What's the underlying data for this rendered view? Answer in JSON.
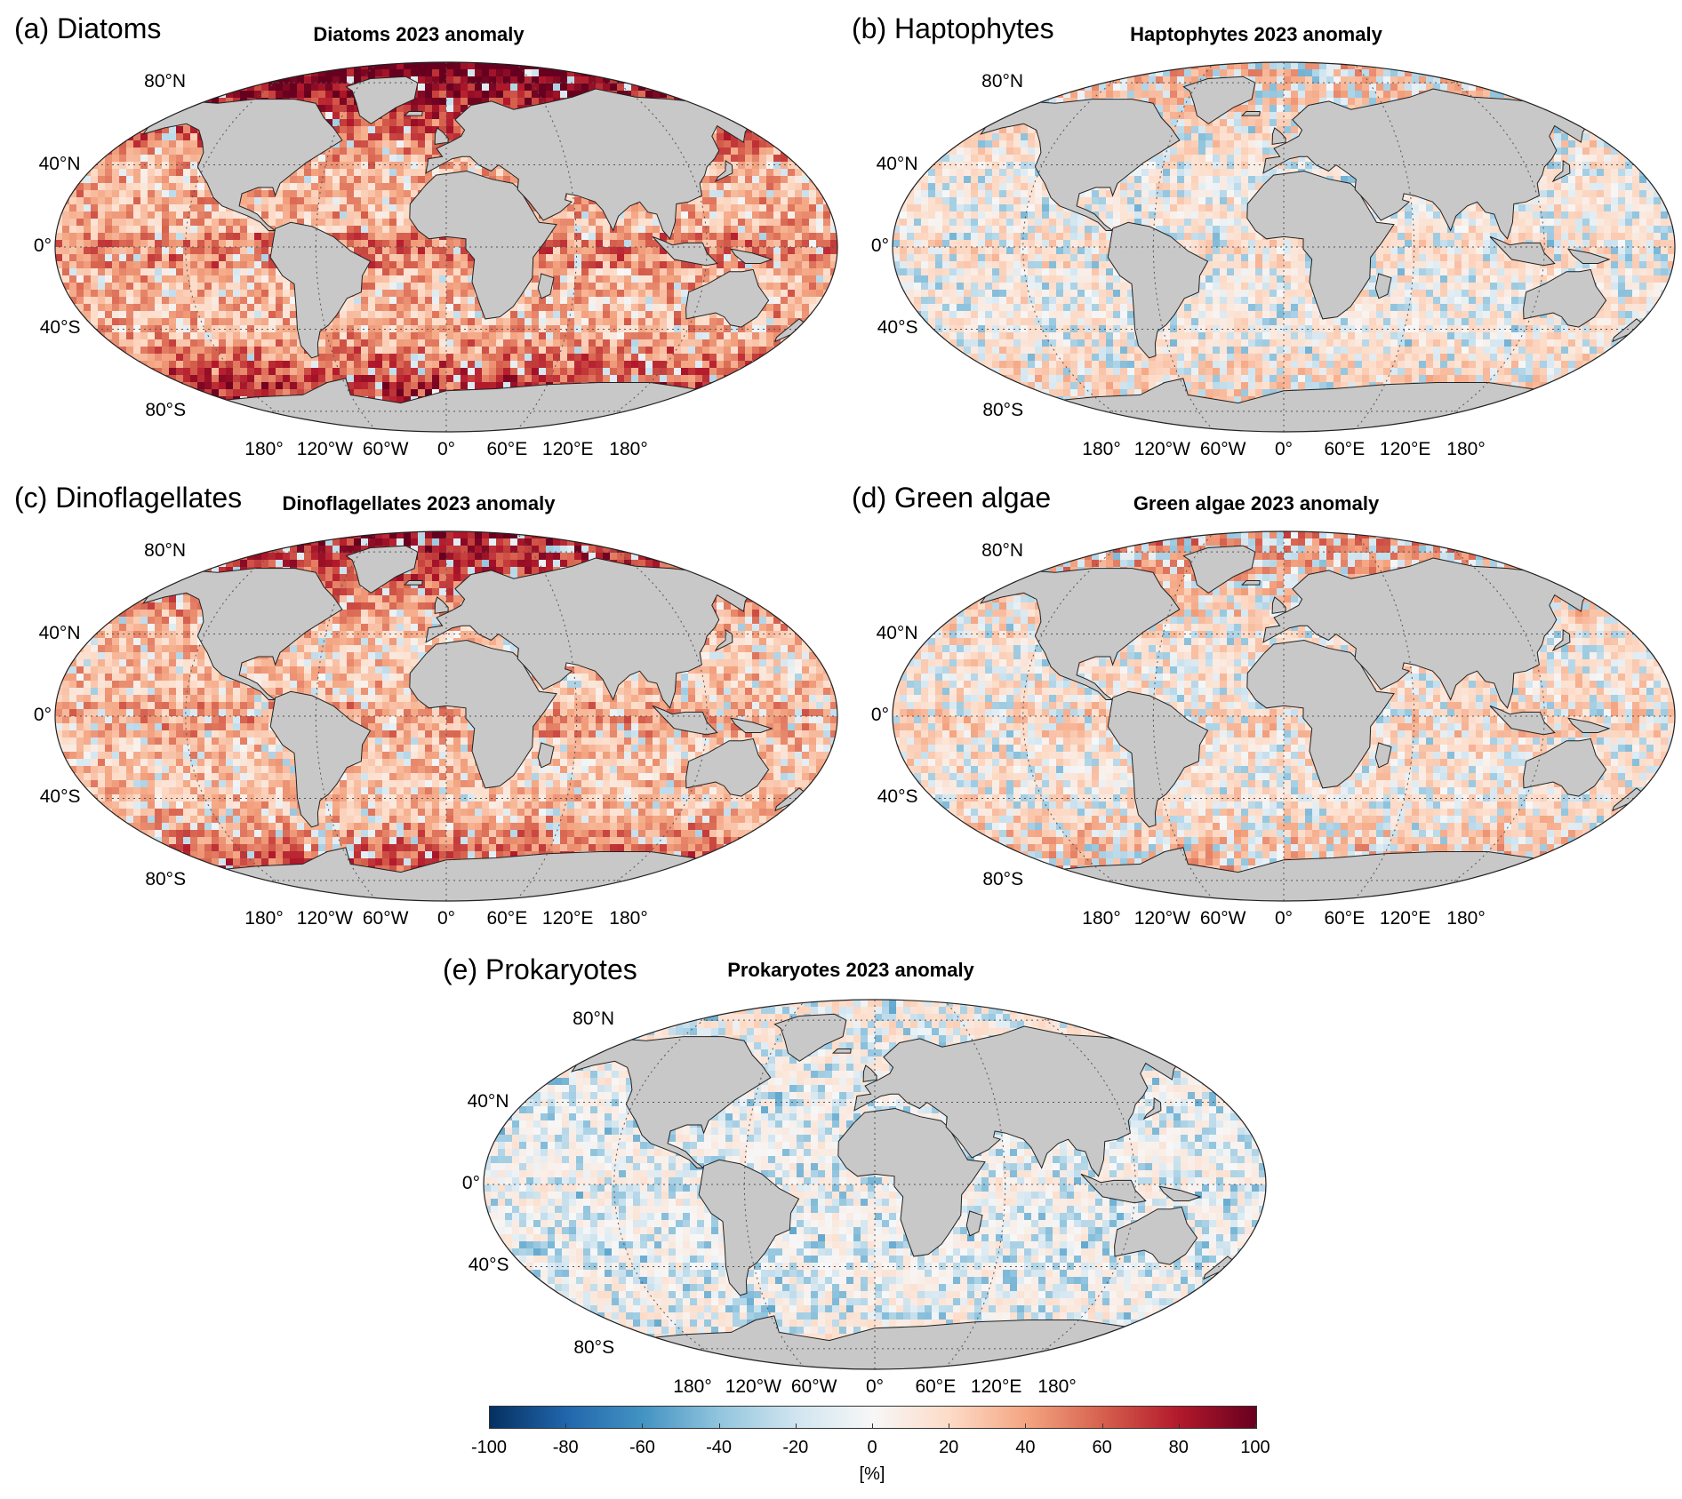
{
  "figure": {
    "panels": [
      {
        "id": "a",
        "label": "(a) Diatoms",
        "title": "Diatoms 2023 anomaly",
        "intensity": 0.85,
        "blue_fraction": 0.06
      },
      {
        "id": "b",
        "label": "(b) Haptophytes",
        "title": "Haptophytes 2023 anomaly",
        "intensity": 0.35,
        "blue_fraction": 0.35
      },
      {
        "id": "c",
        "label": "(c) Dinoflagellates",
        "title": "Dinoflagellates 2023 anomaly",
        "intensity": 0.7,
        "blue_fraction": 0.12
      },
      {
        "id": "d",
        "label": "(d) Green algae",
        "title": "Green algae 2023 anomaly",
        "intensity": 0.45,
        "blue_fraction": 0.3
      },
      {
        "id": "e",
        "label": "(e) Prokaryotes",
        "title": "Prokaryotes 2023 anomaly",
        "intensity": 0.15,
        "blue_fraction": 0.45
      }
    ],
    "lat_labels": [
      "80°N",
      "40°N",
      "0°",
      "40°S",
      "80°S"
    ],
    "lon_labels": [
      "180°",
      "120°W",
      "60°W",
      "0°",
      "60°E",
      "120°E",
      "180°"
    ],
    "colorbar": {
      "ticks": [
        "-100",
        "-80",
        "-60",
        "-40",
        "-20",
        "0",
        "20",
        "40",
        "60",
        "80",
        "100"
      ],
      "unit": "[%]",
      "range": [
        -100,
        100
      ],
      "colors": [
        "#053061",
        "#2166ac",
        "#4393c3",
        "#92c5de",
        "#d1e5f0",
        "#f7f7f7",
        "#fddbc7",
        "#f4a582",
        "#d6604d",
        "#b2182b",
        "#67001f"
      ]
    },
    "land_color": "#c8c8c8",
    "ocean_base_color": "#f7f7f7"
  }
}
